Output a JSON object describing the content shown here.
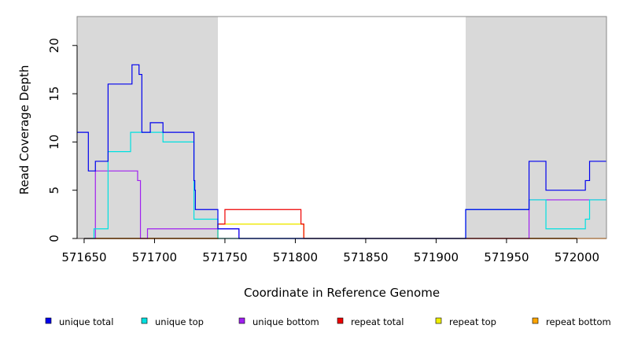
{
  "chart_data": {
    "type": "line",
    "xlabel": "Coordinate in Reference Genome",
    "ylabel": "Read Coverage Depth",
    "xlim": [
      571645,
      572021
    ],
    "ylim": [
      0,
      23
    ],
    "x_ticks": [
      571650,
      571700,
      571750,
      571800,
      571850,
      571900,
      571950,
      572000
    ],
    "y_ticks": [
      0,
      5,
      10,
      15,
      20
    ],
    "shaded_regions": [
      [
        571645,
        571745
      ],
      [
        571921,
        572021
      ]
    ],
    "shade_color": "#d9d9d9",
    "legend_position": "bottom",
    "series": [
      {
        "name": "unique total",
        "color": "#0000ee",
        "steps": [
          [
            571645,
            11
          ],
          [
            571653,
            7
          ],
          [
            571658,
            8
          ],
          [
            571667,
            16
          ],
          [
            571684,
            18
          ],
          [
            571689,
            17
          ],
          [
            571691,
            11
          ],
          [
            571697,
            12
          ],
          [
            571706,
            11
          ],
          [
            571728,
            6
          ],
          [
            571728.6,
            5
          ],
          [
            571729,
            3
          ],
          [
            571745,
            1
          ],
          [
            571760,
            0
          ],
          [
            571921,
            3
          ],
          [
            571966,
            8
          ],
          [
            571978,
            5
          ],
          [
            572006,
            6
          ],
          [
            572009,
            8
          ],
          [
            572021,
            8
          ]
        ]
      },
      {
        "name": "unique top",
        "color": "#00e0e0",
        "steps": [
          [
            571645,
            0
          ],
          [
            571657,
            1
          ],
          [
            571667,
            9
          ],
          [
            571683,
            11
          ],
          [
            571706,
            10
          ],
          [
            571728,
            2
          ],
          [
            571735,
            2
          ],
          [
            571745,
            0
          ],
          [
            571921,
            3
          ],
          [
            571966,
            4
          ],
          [
            571978,
            1
          ],
          [
            572006,
            2
          ],
          [
            572009,
            4
          ],
          [
            572021,
            4
          ]
        ]
      },
      {
        "name": "unique bottom",
        "color": "#a020f0",
        "steps": [
          [
            571645,
            0
          ],
          [
            571658,
            7
          ],
          [
            571688,
            6
          ],
          [
            571690,
            0
          ],
          [
            571695,
            1
          ],
          [
            571729,
            1
          ],
          [
            571745,
            1
          ],
          [
            571760,
            0
          ],
          [
            571966,
            4
          ],
          [
            572021,
            4
          ]
        ]
      },
      {
        "name": "repeat total",
        "color": "#ee0000",
        "steps": [
          [
            571645,
            0
          ],
          [
            571745,
            1.5
          ],
          [
            571750,
            3
          ],
          [
            571804,
            1.5
          ],
          [
            571806,
            0
          ],
          [
            572021,
            0
          ]
        ]
      },
      {
        "name": "repeat top",
        "color": "#eeee00",
        "steps": [
          [
            571645,
            0
          ],
          [
            571745,
            1.5
          ],
          [
            571806,
            0
          ],
          [
            572021,
            0
          ]
        ]
      },
      {
        "name": "repeat bottom",
        "color": "#ffa500",
        "steps": [
          [
            571645,
            0
          ],
          [
            571745,
            1.5
          ],
          [
            571750,
            1.5
          ],
          [
            571804,
            1.5
          ],
          [
            571806,
            0
          ],
          [
            572021,
            0
          ]
        ]
      }
    ]
  }
}
